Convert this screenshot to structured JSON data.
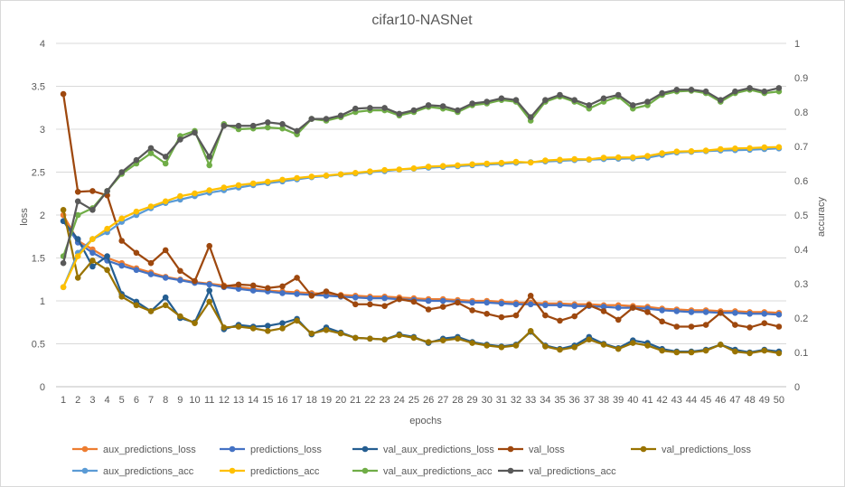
{
  "chart_data": {
    "type": "line",
    "title": "cifar10-NASNet",
    "xlabel": "epochs",
    "ylabel_left": "loss",
    "ylabel_right": "accuracy",
    "ylim_left": [
      0,
      4
    ],
    "ylim_right": [
      0,
      1
    ],
    "yticks_left": [
      "0",
      "0.5",
      "1",
      "1.5",
      "2",
      "2.5",
      "3",
      "3.5",
      "4"
    ],
    "yticks_right": [
      "0",
      "0.1",
      "0.2",
      "0.3",
      "0.4",
      "0.5",
      "0.6",
      "0.7",
      "0.8",
      "0.9",
      "1"
    ],
    "grid": true,
    "legend_position": "bottom",
    "x": [
      1,
      2,
      3,
      4,
      5,
      6,
      7,
      8,
      9,
      10,
      11,
      12,
      13,
      14,
      15,
      16,
      17,
      18,
      19,
      20,
      21,
      22,
      23,
      24,
      25,
      26,
      27,
      28,
      29,
      30,
      31,
      32,
      33,
      34,
      35,
      36,
      37,
      38,
      39,
      40,
      41,
      42,
      43,
      44,
      45,
      46,
      47,
      48,
      49,
      50
    ],
    "series": [
      {
        "name": "aux_predictions_loss",
        "axis": "left",
        "color": "#ED7D31",
        "values": [
          2.0,
          1.7,
          1.6,
          1.5,
          1.44,
          1.38,
          1.33,
          1.28,
          1.25,
          1.22,
          1.2,
          1.18,
          1.16,
          1.14,
          1.12,
          1.11,
          1.1,
          1.09,
          1.08,
          1.07,
          1.06,
          1.05,
          1.05,
          1.04,
          1.03,
          1.02,
          1.02,
          1.01,
          1.0,
          1.0,
          0.99,
          0.98,
          0.98,
          0.97,
          0.97,
          0.96,
          0.96,
          0.95,
          0.95,
          0.94,
          0.93,
          0.91,
          0.9,
          0.89,
          0.89,
          0.88,
          0.88,
          0.87,
          0.87,
          0.86
        ]
      },
      {
        "name": "predictions_loss",
        "axis": "left",
        "color": "#4472C4",
        "values": [
          1.93,
          1.68,
          1.56,
          1.47,
          1.41,
          1.36,
          1.31,
          1.27,
          1.24,
          1.21,
          1.19,
          1.16,
          1.14,
          1.12,
          1.11,
          1.09,
          1.08,
          1.07,
          1.06,
          1.05,
          1.04,
          1.03,
          1.03,
          1.02,
          1.01,
          1.0,
          1.0,
          0.99,
          0.98,
          0.98,
          0.97,
          0.96,
          0.96,
          0.95,
          0.95,
          0.94,
          0.94,
          0.93,
          0.92,
          0.92,
          0.91,
          0.89,
          0.88,
          0.87,
          0.87,
          0.86,
          0.86,
          0.85,
          0.85,
          0.84
        ]
      },
      {
        "name": "val_aux_predictions_loss",
        "axis": "left",
        "color": "#255E91",
        "values": [
          1.93,
          1.72,
          1.4,
          1.52,
          1.08,
          0.99,
          0.88,
          1.04,
          0.8,
          0.75,
          1.12,
          0.67,
          0.72,
          0.7,
          0.71,
          0.74,
          0.79,
          0.61,
          0.69,
          0.63,
          0.57,
          0.56,
          0.55,
          0.61,
          0.58,
          0.51,
          0.56,
          0.58,
          0.52,
          0.49,
          0.47,
          0.49,
          0.64,
          0.48,
          0.44,
          0.48,
          0.58,
          0.5,
          0.45,
          0.54,
          0.51,
          0.44,
          0.41,
          0.41,
          0.43,
          0.49,
          0.43,
          0.4,
          0.43,
          0.41
        ]
      },
      {
        "name": "val_loss",
        "axis": "left",
        "color": "#9E480E",
        "values": [
          3.41,
          2.27,
          2.28,
          2.23,
          1.7,
          1.56,
          1.44,
          1.59,
          1.35,
          1.23,
          1.64,
          1.17,
          1.19,
          1.18,
          1.15,
          1.17,
          1.27,
          1.06,
          1.11,
          1.06,
          0.96,
          0.96,
          0.94,
          1.02,
          0.99,
          0.9,
          0.93,
          0.98,
          0.89,
          0.85,
          0.81,
          0.83,
          1.06,
          0.83,
          0.77,
          0.82,
          0.95,
          0.88,
          0.78,
          0.92,
          0.87,
          0.76,
          0.7,
          0.7,
          0.72,
          0.86,
          0.72,
          0.69,
          0.74,
          0.7
        ]
      },
      {
        "name": "val_predictions_loss",
        "axis": "left",
        "color": "#997300",
        "values": [
          2.06,
          1.27,
          1.47,
          1.36,
          1.05,
          0.95,
          0.88,
          0.95,
          0.82,
          0.74,
          0.99,
          0.69,
          0.7,
          0.68,
          0.65,
          0.68,
          0.77,
          0.62,
          0.66,
          0.62,
          0.57,
          0.56,
          0.55,
          0.6,
          0.57,
          0.52,
          0.54,
          0.56,
          0.51,
          0.48,
          0.46,
          0.48,
          0.65,
          0.47,
          0.43,
          0.46,
          0.55,
          0.49,
          0.44,
          0.51,
          0.48,
          0.42,
          0.4,
          0.4,
          0.42,
          0.49,
          0.41,
          0.39,
          0.42,
          0.39
        ]
      },
      {
        "name": "aux_predictions_acc",
        "axis": "right",
        "color": "#5B9BD5",
        "values": [
          0.29,
          0.39,
          0.43,
          0.45,
          0.48,
          0.5,
          0.52,
          0.535,
          0.545,
          0.555,
          0.565,
          0.572,
          0.58,
          0.587,
          0.593,
          0.598,
          0.604,
          0.61,
          0.614,
          0.618,
          0.621,
          0.625,
          0.628,
          0.632,
          0.635,
          0.638,
          0.64,
          0.642,
          0.645,
          0.647,
          0.649,
          0.652,
          0.654,
          0.656,
          0.658,
          0.66,
          0.661,
          0.663,
          0.664,
          0.665,
          0.667,
          0.675,
          0.682,
          0.684,
          0.686,
          0.688,
          0.689,
          0.69,
          0.692,
          0.694
        ]
      },
      {
        "name": "predictions_acc",
        "axis": "right",
        "color": "#FFC000",
        "values": [
          0.29,
          0.38,
          0.43,
          0.46,
          0.49,
          0.51,
          0.525,
          0.54,
          0.555,
          0.563,
          0.572,
          0.58,
          0.587,
          0.592,
          0.597,
          0.603,
          0.608,
          0.612,
          0.615,
          0.619,
          0.623,
          0.627,
          0.631,
          0.633,
          0.636,
          0.641,
          0.643,
          0.645,
          0.648,
          0.65,
          0.652,
          0.655,
          0.653,
          0.659,
          0.661,
          0.663,
          0.662,
          0.667,
          0.668,
          0.668,
          0.672,
          0.68,
          0.685,
          0.686,
          0.688,
          0.692,
          0.694,
          0.695,
          0.697,
          0.698
        ]
      },
      {
        "name": "val_aux_predictions_acc",
        "axis": "right",
        "color": "#70AD47",
        "values": [
          0.38,
          0.5,
          0.52,
          0.57,
          0.62,
          0.65,
          0.68,
          0.65,
          0.73,
          0.745,
          0.645,
          0.765,
          0.75,
          0.752,
          0.755,
          0.752,
          0.735,
          0.78,
          0.775,
          0.785,
          0.8,
          0.805,
          0.805,
          0.79,
          0.8,
          0.815,
          0.81,
          0.8,
          0.82,
          0.825,
          0.835,
          0.83,
          0.775,
          0.83,
          0.845,
          0.83,
          0.81,
          0.83,
          0.845,
          0.81,
          0.82,
          0.85,
          0.86,
          0.862,
          0.855,
          0.83,
          0.855,
          0.865,
          0.855,
          0.86
        ]
      },
      {
        "name": "val_predictions_acc",
        "axis": "right",
        "color": "#595959",
        "values": [
          0.36,
          0.54,
          0.515,
          0.57,
          0.625,
          0.66,
          0.695,
          0.67,
          0.72,
          0.74,
          0.67,
          0.76,
          0.76,
          0.76,
          0.77,
          0.765,
          0.745,
          0.78,
          0.78,
          0.79,
          0.81,
          0.812,
          0.812,
          0.795,
          0.805,
          0.82,
          0.817,
          0.805,
          0.825,
          0.83,
          0.84,
          0.835,
          0.785,
          0.835,
          0.85,
          0.835,
          0.82,
          0.84,
          0.85,
          0.82,
          0.83,
          0.855,
          0.865,
          0.865,
          0.86,
          0.835,
          0.86,
          0.87,
          0.86,
          0.87
        ]
      }
    ]
  }
}
